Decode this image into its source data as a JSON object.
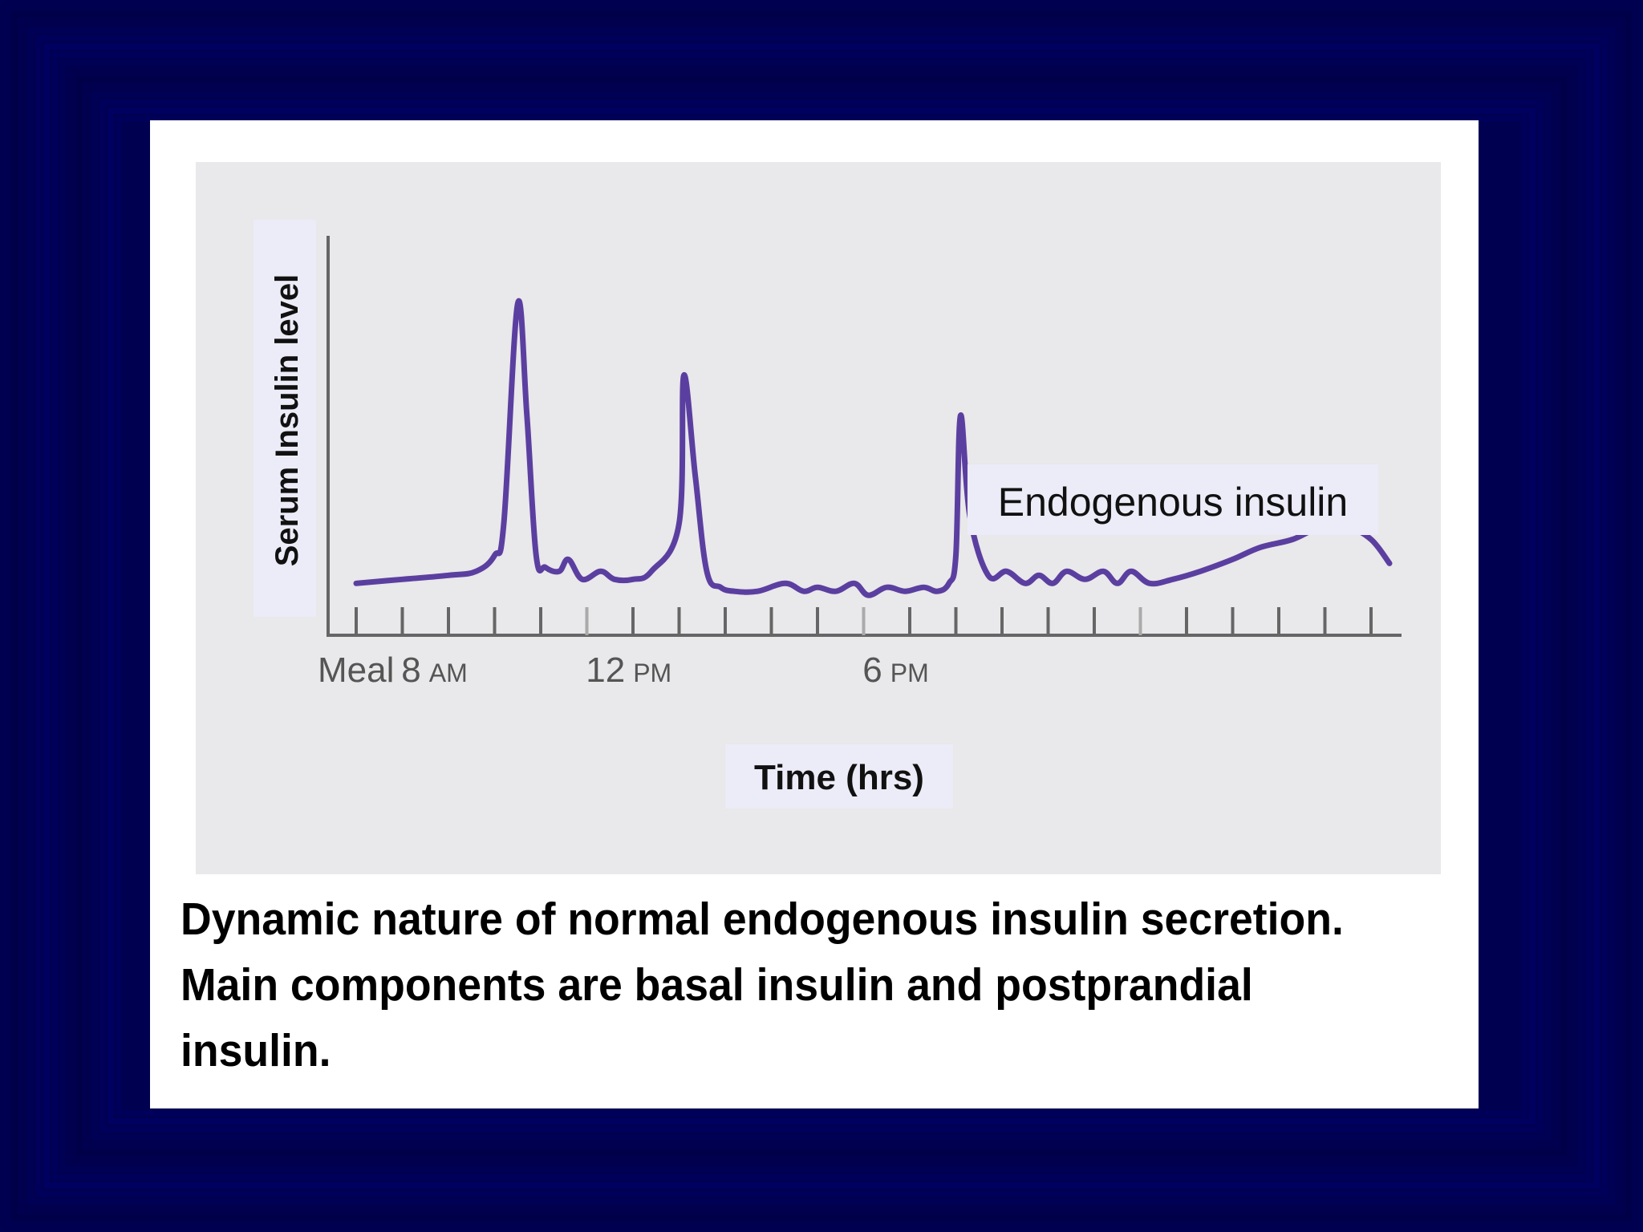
{
  "slide": {
    "background_color": "#000050",
    "caption": "Dynamic nature of normal endogenous insulin secretion. Main components are basal insulin and postprandial insulin."
  },
  "chart_data": {
    "type": "line",
    "title": "",
    "xlabel": "Time (hrs)",
    "ylabel": "Serum Insulin level",
    "x_tick_labels": [
      {
        "at": 0,
        "main": "Meal",
        "suffix": ""
      },
      {
        "at": 1.5,
        "main": "8",
        "suffix": "AM"
      },
      {
        "at": 5.5,
        "main": "12",
        "suffix": "PM"
      },
      {
        "at": 11.5,
        "main": "6",
        "suffix": "PM"
      }
    ],
    "xlim": [
      -0.7,
      22.5
    ],
    "ylim": [
      0,
      100
    ],
    "minor_ticks": [
      0,
      1,
      2,
      3,
      4,
      5,
      6,
      7,
      8,
      9,
      10,
      11,
      12,
      13,
      14,
      15,
      16,
      17,
      18,
      19,
      20,
      21,
      22
    ],
    "grid": false,
    "annotation": "Endogenous insulin",
    "series": [
      {
        "name": "",
        "color": "#5b3fa0",
        "x": [
          0,
          1,
          2,
          2.6,
          3,
          3.2,
          3.5,
          3.7,
          3.9,
          4.1,
          4.4,
          4.6,
          4.9,
          5.3,
          5.6,
          6.0,
          6.4,
          7.0,
          7.1,
          7.35,
          7.6,
          7.9,
          8.2,
          8.7,
          9.3,
          9.7,
          10.0,
          10.4,
          10.8,
          11.1,
          11.5,
          11.9,
          12.3,
          12.6,
          12.85,
          13.0,
          13.1,
          13.3,
          13.7,
          14.1,
          14.5,
          14.8,
          15.1,
          15.4,
          15.8,
          16.2,
          16.5,
          16.8,
          17.2,
          17.7,
          18.3,
          19,
          19.6,
          20.3,
          20.9,
          21.5,
          22.0,
          22.4
        ],
        "y": [
          13,
          14,
          15,
          16,
          20,
          28,
          83,
          55,
          20,
          17,
          16,
          19,
          14,
          16,
          14,
          14,
          16,
          28,
          65,
          40,
          16,
          12,
          11,
          11,
          13,
          11,
          12,
          11,
          13,
          10,
          12,
          11,
          12,
          11,
          13,
          20,
          55,
          30,
          15,
          16,
          13,
          15,
          13,
          16,
          14,
          16,
          13,
          16,
          13,
          14,
          16,
          19,
          22,
          24,
          27,
          27,
          24,
          18
        ]
      }
    ]
  }
}
